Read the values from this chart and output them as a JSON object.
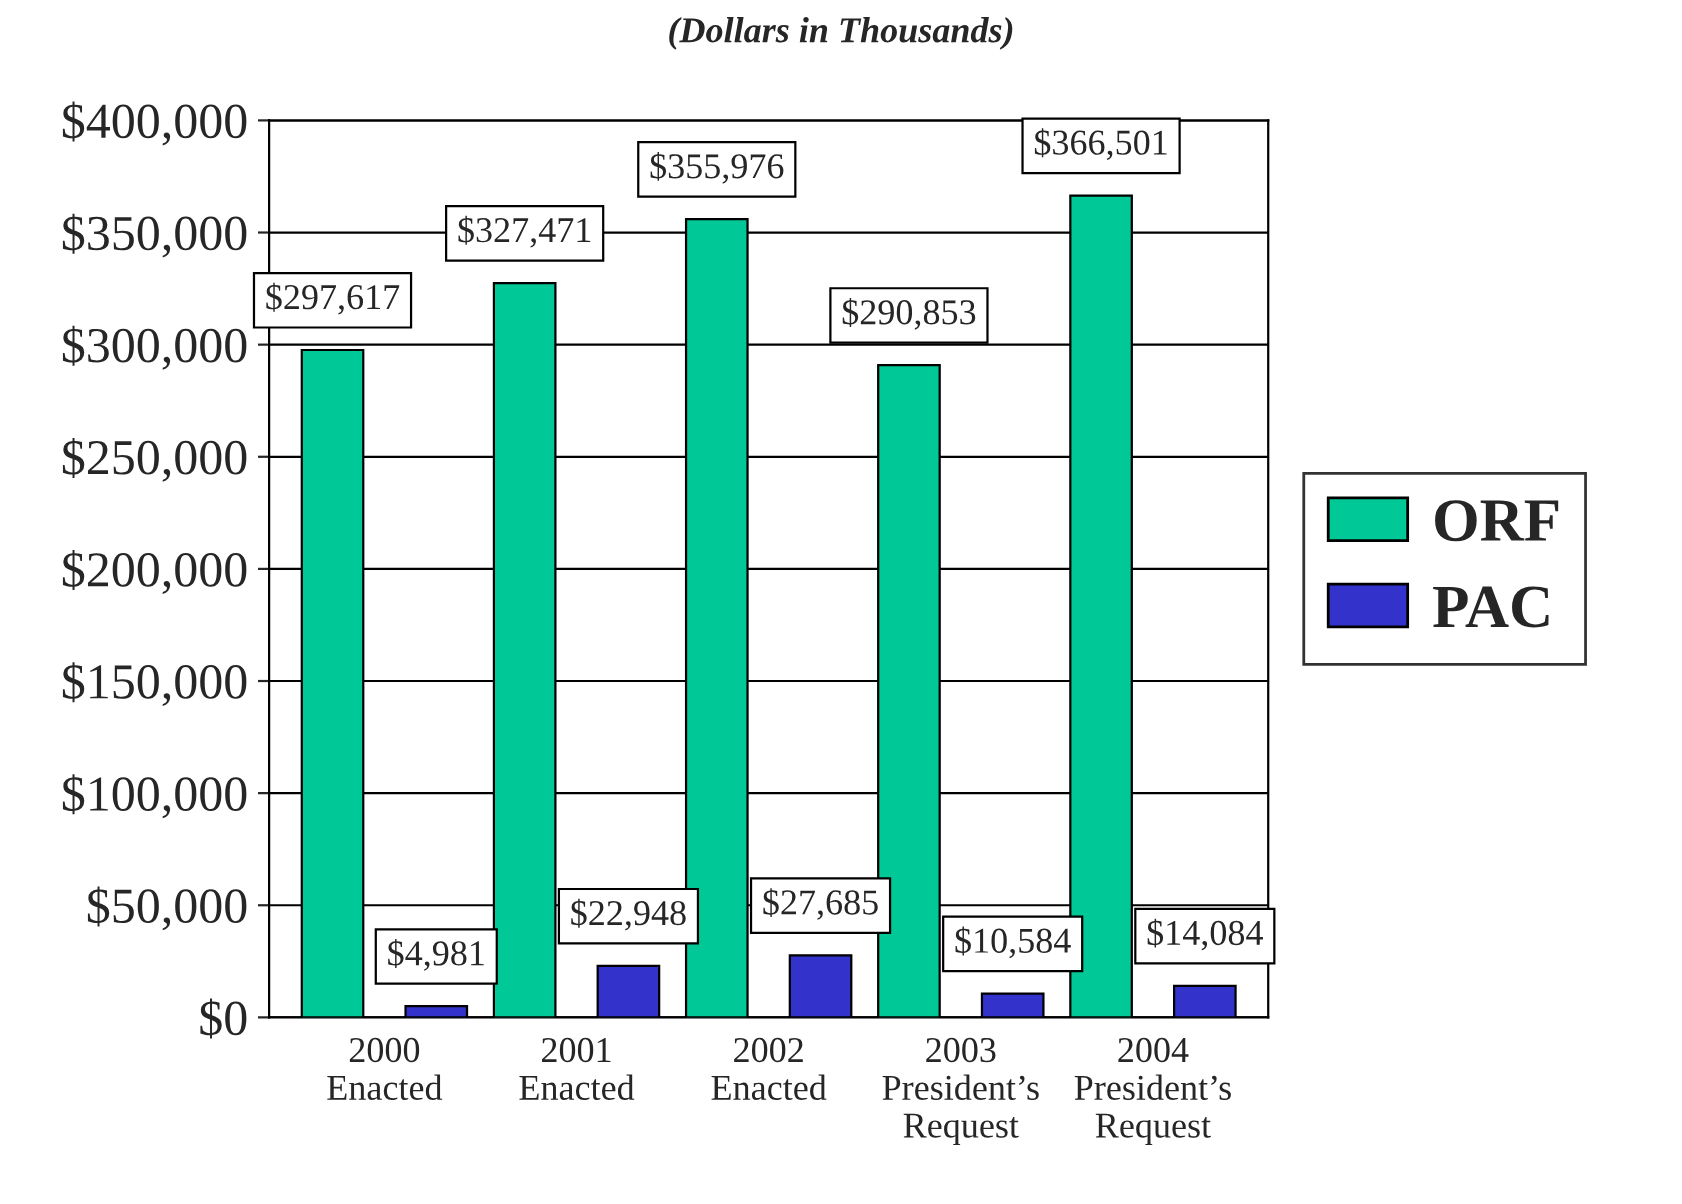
{
  "chart_data": {
    "type": "bar",
    "title": "(Dollars in Thousands)",
    "categories": [
      "2000\nEnacted",
      "2001\nEnacted",
      "2002\nEnacted",
      "2003\nPresident’s\nRequest",
      "2004\nPresident’s\nRequest"
    ],
    "series": [
      {
        "name": "ORF",
        "color": "#00c896",
        "values": [
          297617,
          327471,
          355976,
          290853,
          366501
        ],
        "value_labels": [
          "$297,617",
          "$327,471",
          "$355,976",
          "$290,853",
          "$366,501"
        ]
      },
      {
        "name": "PAC",
        "color": "#3333cc",
        "values": [
          4981,
          22948,
          27685,
          10584,
          14084
        ],
        "value_labels": [
          "$4,981",
          "$22,948",
          "$27,685",
          "$10,584",
          "$14,084"
        ]
      }
    ],
    "ylim": [
      0,
      400000
    ],
    "yticks": [
      {
        "value": 0,
        "label": "$0"
      },
      {
        "value": 50000,
        "label": "$50,000"
      },
      {
        "value": 100000,
        "label": "$100,000"
      },
      {
        "value": 150000,
        "label": "$150,000"
      },
      {
        "value": 200000,
        "label": "$200,000"
      },
      {
        "value": 250000,
        "label": "$250,000"
      },
      {
        "value": 300000,
        "label": "$300,000"
      },
      {
        "value": 350000,
        "label": "$350,000"
      },
      {
        "value": 400000,
        "label": "$400,000"
      }
    ],
    "grid": "y",
    "legend": "right"
  }
}
